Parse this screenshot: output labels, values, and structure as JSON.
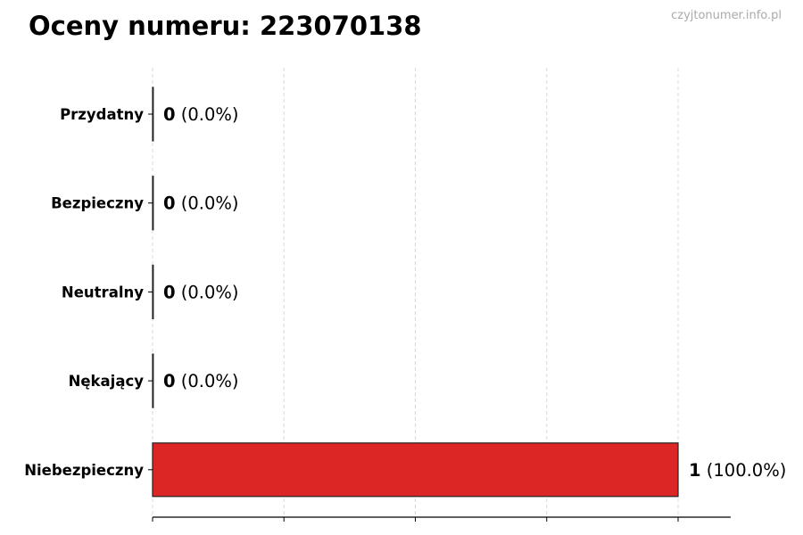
{
  "title": "Oceny numeru: 223070138",
  "watermark": "czyjtonumer.info.pl",
  "chart_data": {
    "type": "bar",
    "orientation": "horizontal",
    "title": "Oceny numeru: 223070138",
    "categories": [
      "Przydatny",
      "Bezpieczny",
      "Neutralny",
      "Nękający",
      "Niebezpieczny"
    ],
    "values": [
      0,
      0,
      0,
      0,
      1
    ],
    "data_labels": [
      "(0.0%)",
      "(0.0%)",
      "(0.0%)",
      "(0.0%)",
      "(100.0%)"
    ],
    "colors": [
      "#4caf50",
      "#4caf50",
      "#9e9e9e",
      "#ff9800",
      "#dc2626"
    ],
    "xlim": [
      0,
      1.1
    ],
    "xticks": [
      0,
      0.25,
      0.5,
      0.75,
      1
    ],
    "grid": "x, dashed",
    "xlabel": "",
    "ylabel": ""
  }
}
